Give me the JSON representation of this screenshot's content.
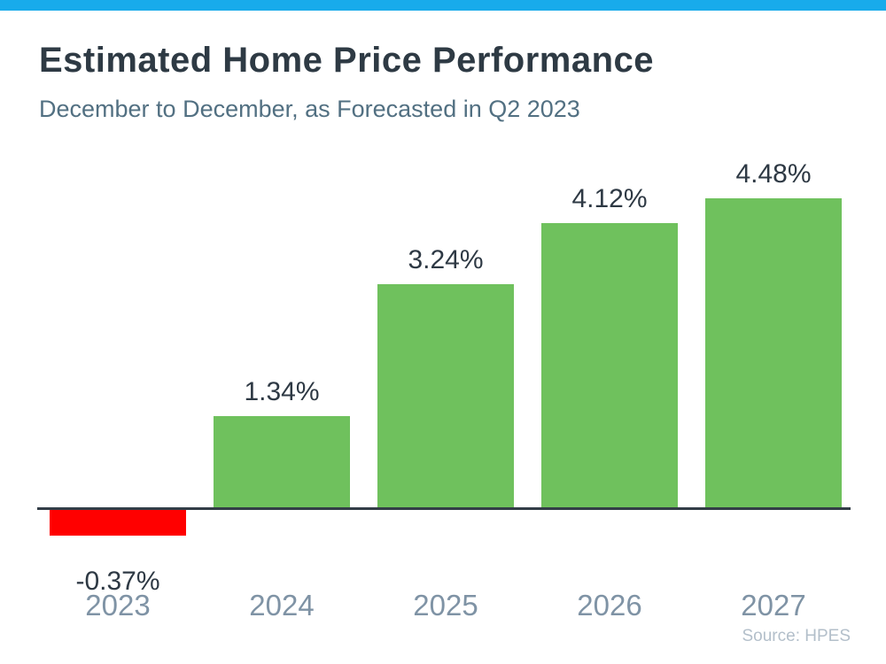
{
  "colors": {
    "accent_bar": "#18ABEB",
    "positive_bar": "#6FC15D",
    "negative_bar": "#FF0000",
    "axis_line": "#333D47",
    "title_text": "#2E3A44",
    "subtitle_text": "#527082",
    "value_label_text": "#2E3944",
    "category_label_text": "#7F93A5",
    "source_text": "#B3BFCA"
  },
  "chart_data": {
    "type": "bar",
    "title": "Estimated Home Price Performance",
    "subtitle": "December to December, as Forecasted in Q2 2023",
    "source": "Source: HPES",
    "categories": [
      "2023",
      "2024",
      "2025",
      "2026",
      "2027"
    ],
    "values": [
      -0.37,
      1.34,
      3.24,
      4.12,
      4.48
    ],
    "data_labels": [
      "-0.37%",
      "1.34%",
      "3.24%",
      "4.12%",
      "4.48%"
    ],
    "bar_colors": [
      "#FF0000",
      "#6FC15D",
      "#6FC15D",
      "#6FC15D",
      "#6FC15D"
    ],
    "xlabel": "",
    "ylabel": "",
    "ylim": [
      -0.8,
      5.0
    ],
    "grid": false,
    "legend": false
  }
}
